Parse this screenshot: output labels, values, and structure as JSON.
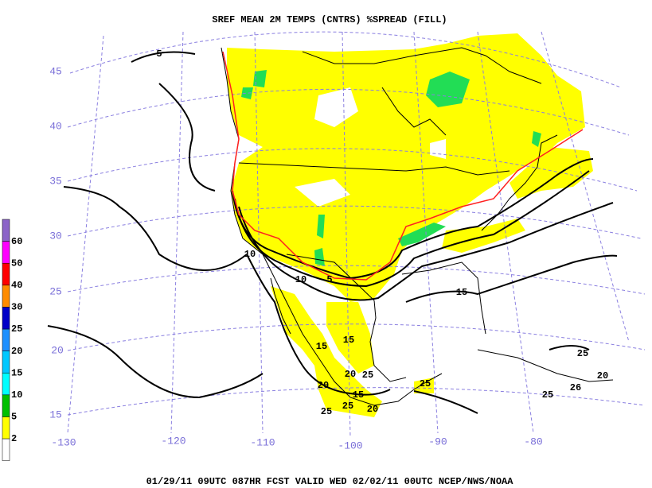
{
  "header": {
    "title": "SREF MEAN 2M TEMPS (CNTRS) %SPREAD (FILL)"
  },
  "footer": {
    "text": "01/29/11 09UTC  087HR  FCST VALID WED 02/02/11 00UTC  NCEP/NWS/NOAA"
  },
  "legend": {
    "items": [
      {
        "label": "2",
        "color": "#ffff00"
      },
      {
        "label": "5",
        "color": "#00c000"
      },
      {
        "label": "10",
        "color": "#00ffff"
      },
      {
        "label": "15",
        "color": "#00c8ff"
      },
      {
        "label": "20",
        "color": "#1e90ff"
      },
      {
        "label": "25",
        "color": "#0000c8"
      },
      {
        "label": "30",
        "color": "#ff8c00"
      },
      {
        "label": "40",
        "color": "#ff0000"
      },
      {
        "label": "50",
        "color": "#ff00ff"
      },
      {
        "label": "60",
        "color": "#8c64c8"
      }
    ],
    "below_color": "#ffffff"
  },
  "map": {
    "latitude_labels": [
      "45",
      "40",
      "35",
      "30",
      "25",
      "20",
      "15"
    ],
    "longitude_labels": [
      "-130",
      "-120",
      "-110",
      "-100",
      "-90",
      "-80"
    ],
    "contour_labels": [
      "5",
      "10",
      "10",
      "5",
      "15",
      "15",
      "15",
      "20",
      "25",
      "20",
      "15",
      "25",
      "25",
      "25",
      "20",
      "25",
      "20",
      "25",
      "26"
    ]
  }
}
